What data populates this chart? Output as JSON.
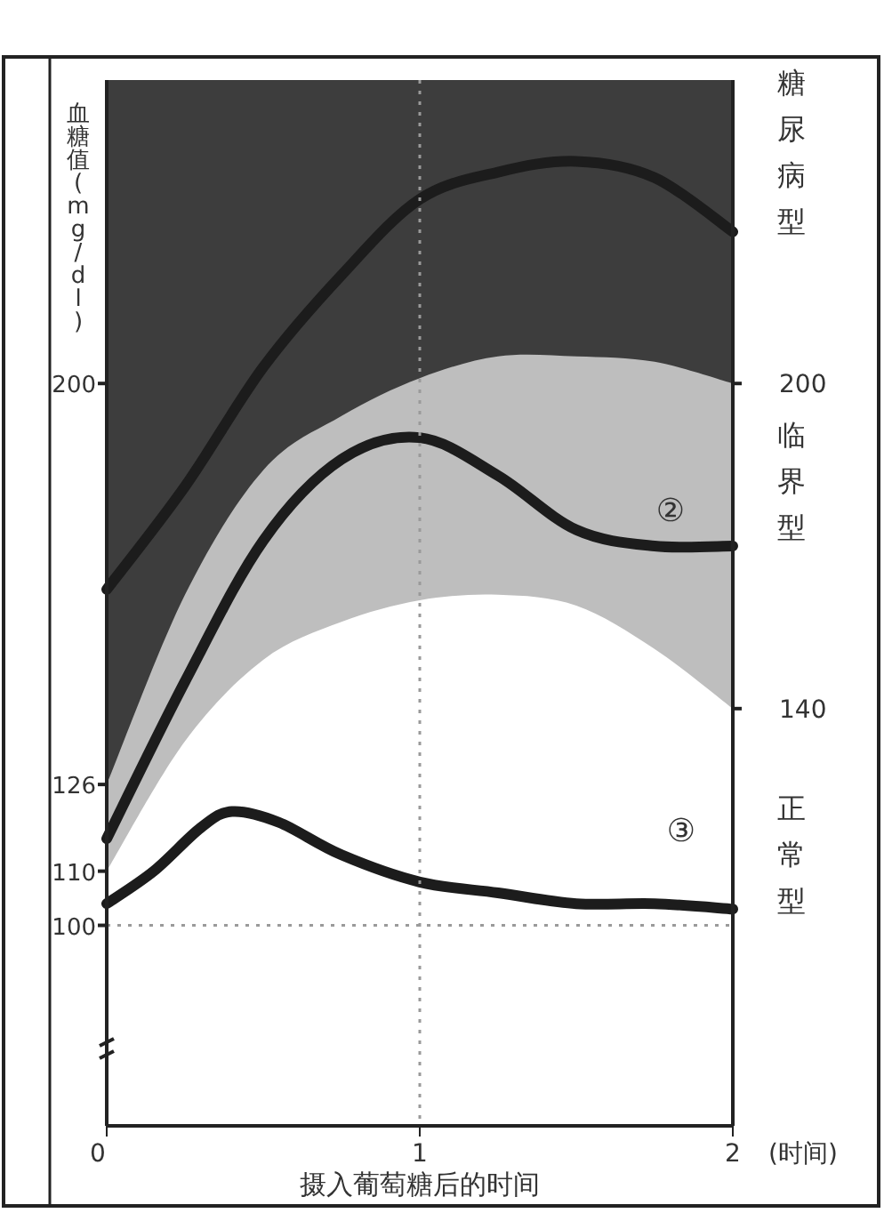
{
  "chart_data": {
    "type": "line",
    "xlabel": "摄入葡萄糖后的时间",
    "ylabel": "血糖值(mg/dl)",
    "x": [
      0,
      0.25,
      0.5,
      0.75,
      1,
      1.25,
      1.5,
      1.75,
      2
    ],
    "xlim": [
      0,
      2
    ],
    "xticks": [
      0,
      1,
      2
    ],
    "ylim": [
      63,
      256
    ],
    "yticks": [
      100,
      110,
      126,
      200
    ],
    "y2lim": [
      63,
      256
    ],
    "y2ticks": [
      140,
      200
    ],
    "series": [
      {
        "type": "area",
        "color": "#bebebe",
        "values": [
          126,
          161,
          184,
          194,
          201,
          205,
          205,
          204,
          200
        ]
      },
      {
        "type": "area",
        "color": "#ffffff",
        "values": [
          110,
          134,
          149,
          156,
          160,
          161,
          159,
          151,
          140
        ]
      },
      {
        "color": "#1c1c1c",
        "values": [
          162,
          181,
          203,
          220,
          234,
          239,
          241,
          238,
          228
        ]
      },
      {
        "color": "#1c1c1c",
        "values": [
          116,
          145,
          171,
          186,
          190,
          183,
          173,
          170,
          170
        ]
      },
      {
        "color": "#1c1c1c",
        "x": [
          0,
          0.15,
          0.3,
          0.4,
          0.55,
          0.75,
          1,
          1.25,
          1.5,
          1.75,
          2
        ],
        "values": [
          104,
          110,
          118,
          121,
          119,
          113,
          108,
          106,
          104,
          104,
          103
        ]
      }
    ],
    "ref_lines": [
      {
        "axis": "y",
        "value": 100,
        "color": "#9a9a9a",
        "line_style": "dotted"
      },
      {
        "axis": "x",
        "value": 1,
        "color": "#9a9a9a",
        "line_style": "dotted"
      }
    ],
    "marker": "none",
    "line_style": "solid",
    "grid": false,
    "annotations": [
      "②",
      "③",
      "糖尿病型",
      "临界型",
      "正常型",
      "(时间)"
    ]
  }
}
